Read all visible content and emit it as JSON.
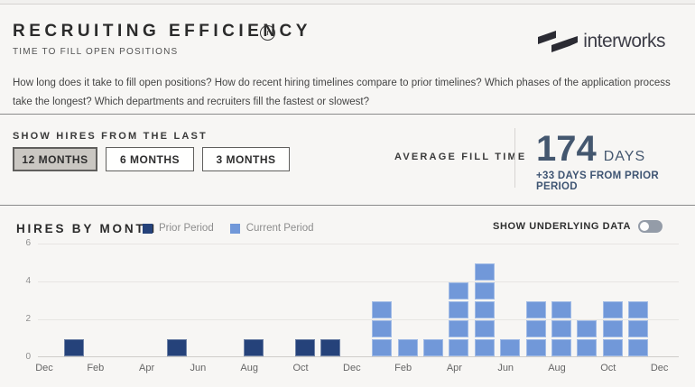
{
  "header": {
    "title": "RECRUITING EFFICIENCY",
    "info_icon": "i",
    "subtitle": "TIME TO FILL OPEN POSITIONS",
    "logo_text": "interworks",
    "description": "How long does it take to fill open positions? How do recent hiring timelines compare to prior timelines? Which phases of the application process take the longest? Which departments and recruiters fill the fastest or slowest?"
  },
  "filters": {
    "label": "SHOW HIRES FROM THE LAST",
    "buttons": [
      {
        "label": "12 MONTHS",
        "selected": true
      },
      {
        "label": "6 MONTHS",
        "selected": false
      },
      {
        "label": "3 MONTHS",
        "selected": false
      }
    ]
  },
  "kpi": {
    "label": "AVERAGE FILL TIME",
    "value": "174",
    "unit": "DAYS",
    "delta": "+33 DAYS FROM PRIOR PERIOD"
  },
  "chart": {
    "title": "HIRES BY MONTH",
    "underlying_label": "SHOW UNDERLYING DATA",
    "toggle_state": "off"
  },
  "colors": {
    "prior": "#25427a",
    "current": "#7198d9",
    "kpi_navy": "#44576f"
  },
  "chart_data": {
    "type": "bar",
    "title": "Hires by Month",
    "xlabel": "",
    "ylabel": "",
    "ylim": [
      0,
      6
    ],
    "y_ticks": [
      0,
      2,
      4,
      6
    ],
    "grid": true,
    "legend_position": "top",
    "unit_stacked": true,
    "months": [
      "Dec",
      "Jan",
      "Feb",
      "Mar",
      "Apr",
      "May",
      "Jun",
      "Jul",
      "Aug",
      "Sep",
      "Oct",
      "Nov",
      "Dec",
      "Jan",
      "Feb",
      "Mar",
      "Apr",
      "May",
      "Jun",
      "Jul",
      "Aug",
      "Sep",
      "Oct",
      "Nov",
      "Dec"
    ],
    "x_tick_labels": [
      "Dec",
      "",
      "Feb",
      "",
      "Apr",
      "",
      "Jun",
      "",
      "Aug",
      "",
      "Oct",
      "",
      "Dec",
      "",
      "Feb",
      "",
      "Apr",
      "",
      "Jun",
      "",
      "Aug",
      "",
      "Oct",
      "",
      "Dec"
    ],
    "series": [
      {
        "name": "Prior Period",
        "color": "#25427a",
        "values": [
          0,
          1,
          0,
          0,
          0,
          1,
          0,
          0,
          1,
          0,
          1,
          1,
          0,
          0,
          0,
          0,
          0,
          0,
          0,
          0,
          0,
          0,
          0,
          0,
          0
        ]
      },
      {
        "name": "Current Period",
        "color": "#7198d9",
        "values": [
          0,
          0,
          0,
          0,
          0,
          0,
          0,
          0,
          0,
          0,
          0,
          0,
          0,
          3,
          1,
          1,
          4,
          5,
          1,
          3,
          3,
          2,
          3,
          3,
          0
        ]
      }
    ]
  }
}
